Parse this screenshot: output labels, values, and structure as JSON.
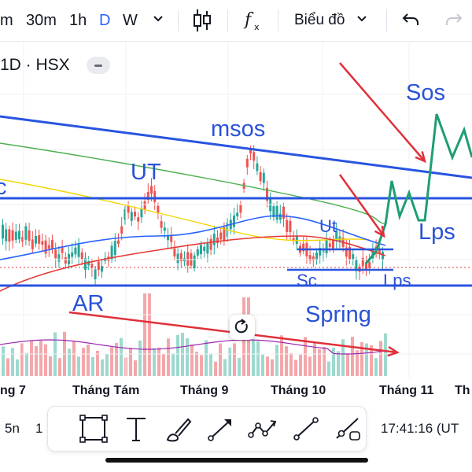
{
  "toolbar": {
    "intervals": [
      "m",
      "30m",
      "1h",
      "D",
      "W"
    ],
    "active_interval": "D",
    "chart_menu_label": "Biểu đồ"
  },
  "symbol": {
    "text": "1D · HSX"
  },
  "annotations": {
    "sos": "Sos",
    "msos": "msos",
    "ut": "UT",
    "c": "c",
    "lps_upper": "Lps",
    "ut_small": "Ut",
    "sc": "Sc",
    "lps_lower": "Lps",
    "ar": "AR",
    "spring": "Spring"
  },
  "x_axis": {
    "labels": [
      "ng 7",
      "Tháng Tám",
      "Tháng 9",
      "Tháng 10",
      "Tháng 11",
      "Th"
    ]
  },
  "bottom": {
    "resolution_left": "5n",
    "resolution_partial": "1",
    "clock": "17:41:16 (UT"
  },
  "colors": {
    "accent": "#2962ff",
    "annotation_blue": "#2952d6",
    "up": "#26a69a",
    "down": "#ef5350",
    "arrow_red": "#e0303a",
    "trend_blue": "#2854e0"
  },
  "icons": [
    "chevron-down-icon",
    "candlestick-icon",
    "fx-indicator-icon",
    "undo-icon",
    "redo-icon",
    "reset-icon",
    "rectangle-icon",
    "text-tool-icon",
    "brush-icon",
    "arrow-tool-icon",
    "path-tool-icon",
    "line-tool-icon",
    "ray-tool-icon"
  ]
}
